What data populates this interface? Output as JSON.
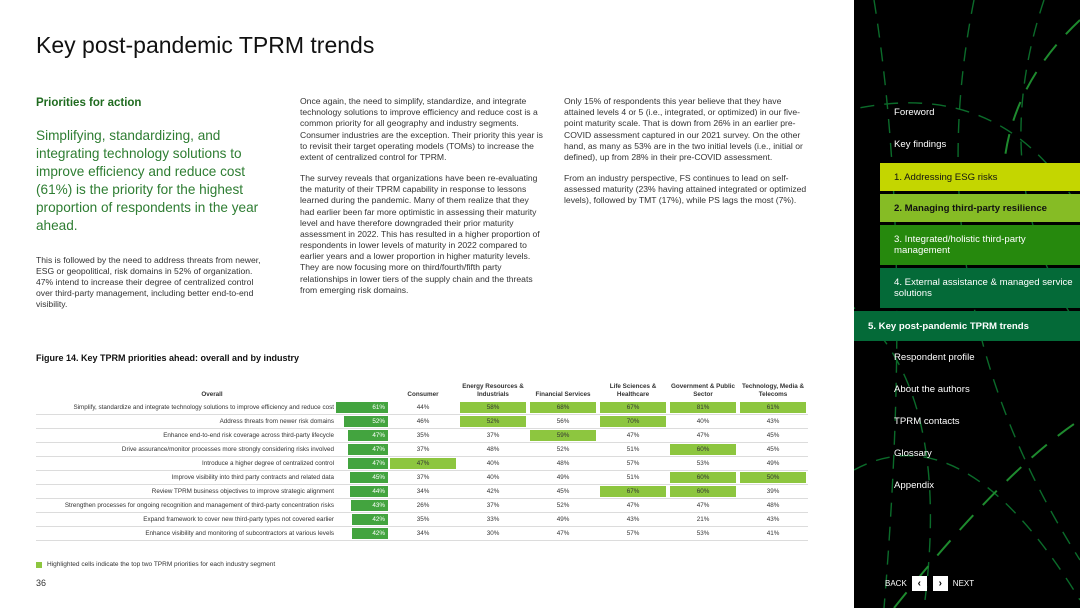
{
  "page": {
    "title": "Key post-pandemic TPRM trends",
    "number": "36"
  },
  "col1": {
    "heading": "Priorities for action",
    "lead": "Simplifying, standardizing, and integrating technology solutions to improve efficiency and reduce cost (61%) is the priority for the highest proportion of respondents in the year ahead.",
    "body": "This is followed by the need to address threats from newer, ESG or geopolitical, risk domains in 52% of organization. 47% intend to increase their degree of centralized control over third-party management, including better end-to-end visibility."
  },
  "col2": {
    "p1": "Once again, the need to simplify, standardize, and integrate technology solutions to improve efficiency and reduce cost is a common priority for all geography and industry segments. Consumer industries are the exception. Their priority this year is to revisit their target operating models (TOMs) to increase the extent of centralized control for TPRM.",
    "p2": "The survey reveals that organizations have been re-evaluating the maturity of their TPRM capability in response to lessons learned during the pandemic. Many of them realize that they had earlier been far more optimistic in assessing their maturity level and have therefore downgraded their prior maturity assessment in 2022. This has resulted in a higher proportion of respondents in lower levels of maturity in 2022 compared to earlier years and a lower proportion in higher maturity levels. They are now focusing more on third/fourth/fifth party relationships in lower tiers of the supply chain and the threats from emerging risk domains."
  },
  "col3": {
    "p1": "Only 15% of respondents this year believe that they have attained levels 4 or 5 (i.e., integrated, or optimized) in our five-point maturity scale. That is down from 26% in an earlier pre-COVID assessment captured in our 2021 survey. On the other hand, as many as 53% are in the two initial levels (i.e., initial or defined), up from 28% in their pre-COVID assessment.",
    "p2": "From an industry perspective, FS continues to lead on self-assessed maturity (23% having attained integrated or optimized levels), followed by TMT (17%), while PS lags the most (7%)."
  },
  "figure": {
    "title": "Figure 14. Key TPRM priorities ahead: overall and by industry",
    "headers": {
      "overall": "Overall",
      "consumer": "Consumer",
      "energy": "Energy Resources & Industrials",
      "financial": "Financial Services",
      "life": "Life Sciences & Healthcare",
      "government": "Government & Public Sector",
      "tech": "Technology, Media & Telecoms"
    },
    "legend": "Highlighted cells indicate the top two TPRM priorities for each industry segment"
  },
  "chart_data": {
    "type": "table",
    "title": "Figure 14. Key TPRM priorities ahead: overall and by industry",
    "columns": [
      "Overall",
      "Consumer",
      "Energy Resources & Industrials",
      "Financial Services",
      "Life Sciences & Healthcare",
      "Government & Public Sector",
      "Technology, Media & Telecoms"
    ],
    "rows": [
      {
        "label": "Simplify, standardize and integrate technology solutions to improve efficiency and reduce cost",
        "overall": 61,
        "overall_text": "61%",
        "values": [
          "44%",
          "58%",
          "68%",
          "67%",
          "81%",
          "61%"
        ],
        "highlight": [
          false,
          true,
          true,
          true,
          true,
          true
        ]
      },
      {
        "label": "Address threats from newer risk domains",
        "overall": 52,
        "overall_text": "52%",
        "values": [
          "46%",
          "52%",
          "56%",
          "70%",
          "40%",
          "43%"
        ],
        "highlight": [
          false,
          true,
          false,
          true,
          false,
          false
        ]
      },
      {
        "label": "Enhance end-to-end risk coverage across third-party lifecycle",
        "overall": 47,
        "overall_text": "47%",
        "values": [
          "35%",
          "37%",
          "59%",
          "47%",
          "47%",
          "45%"
        ],
        "highlight": [
          false,
          false,
          true,
          false,
          false,
          false
        ]
      },
      {
        "label": "Drive assurance/monitor processes more strongly considering risks involved",
        "overall": 47,
        "overall_text": "47%",
        "values": [
          "37%",
          "48%",
          "52%",
          "51%",
          "60%",
          "45%"
        ],
        "highlight": [
          false,
          false,
          false,
          false,
          true,
          false
        ]
      },
      {
        "label": "Introduce a higher degree of centralized control",
        "overall": 47,
        "overall_text": "47%",
        "values": [
          "47%",
          "40%",
          "48%",
          "57%",
          "53%",
          "49%"
        ],
        "highlight": [
          true,
          false,
          false,
          false,
          false,
          false
        ]
      },
      {
        "label": "Improve visibility into third party contracts and related data",
        "overall": 45,
        "overall_text": "45%",
        "values": [
          "37%",
          "40%",
          "49%",
          "51%",
          "60%",
          "50%"
        ],
        "highlight": [
          false,
          false,
          false,
          false,
          true,
          true
        ]
      },
      {
        "label": "Review TPRM business objectives to improve strategic alignment",
        "overall": 44,
        "overall_text": "44%",
        "values": [
          "34%",
          "42%",
          "45%",
          "67%",
          "60%",
          "39%"
        ],
        "highlight": [
          false,
          false,
          false,
          true,
          true,
          false
        ]
      },
      {
        "label": "Strengthen processes for ongoing recognition and management of third-party concentration risks",
        "overall": 43,
        "overall_text": "43%",
        "values": [
          "26%",
          "37%",
          "52%",
          "47%",
          "47%",
          "48%"
        ],
        "highlight": [
          false,
          false,
          false,
          false,
          false,
          false
        ]
      },
      {
        "label": "Expand framework to cover new third-party types not covered earlier",
        "overall": 42,
        "overall_text": "42%",
        "values": [
          "35%",
          "33%",
          "49%",
          "43%",
          "21%",
          "43%"
        ],
        "highlight": [
          false,
          false,
          false,
          false,
          false,
          false
        ]
      },
      {
        "label": "Enhance visibility and monitoring of subcontractors at various levels",
        "overall": 42,
        "overall_text": "42%",
        "values": [
          "34%",
          "30%",
          "47%",
          "57%",
          "53%",
          "41%"
        ],
        "highlight": [
          false,
          false,
          false,
          false,
          false,
          false
        ]
      }
    ],
    "highlight_color": "#8dc63f",
    "bar_color": "#43a43f"
  },
  "sidebar": {
    "items": [
      {
        "label": "Foreword"
      },
      {
        "label": "Key findings"
      },
      {
        "label": "1.  Addressing ESG risks"
      },
      {
        "label": "2.  Managing third-party resilience"
      },
      {
        "label": "3.  Integrated/holistic third-party management"
      },
      {
        "label": "4.  External assistance & managed service solutions"
      },
      {
        "label": "5.  Key post-pandemic TPRM trends"
      },
      {
        "label": "Respondent profile"
      },
      {
        "label": "About the authors"
      },
      {
        "label": "TPRM contacts"
      },
      {
        "label": "Glossary"
      },
      {
        "label": "Appendix"
      }
    ],
    "colors": {
      "background": "#000000",
      "light": "#c4d600",
      "green": "#86bc25",
      "mid": "#26890d",
      "dark": "#046a38"
    }
  },
  "pager": {
    "back": "BACK",
    "next": "NEXT",
    "back_glyph": "‹",
    "next_glyph": "›"
  }
}
